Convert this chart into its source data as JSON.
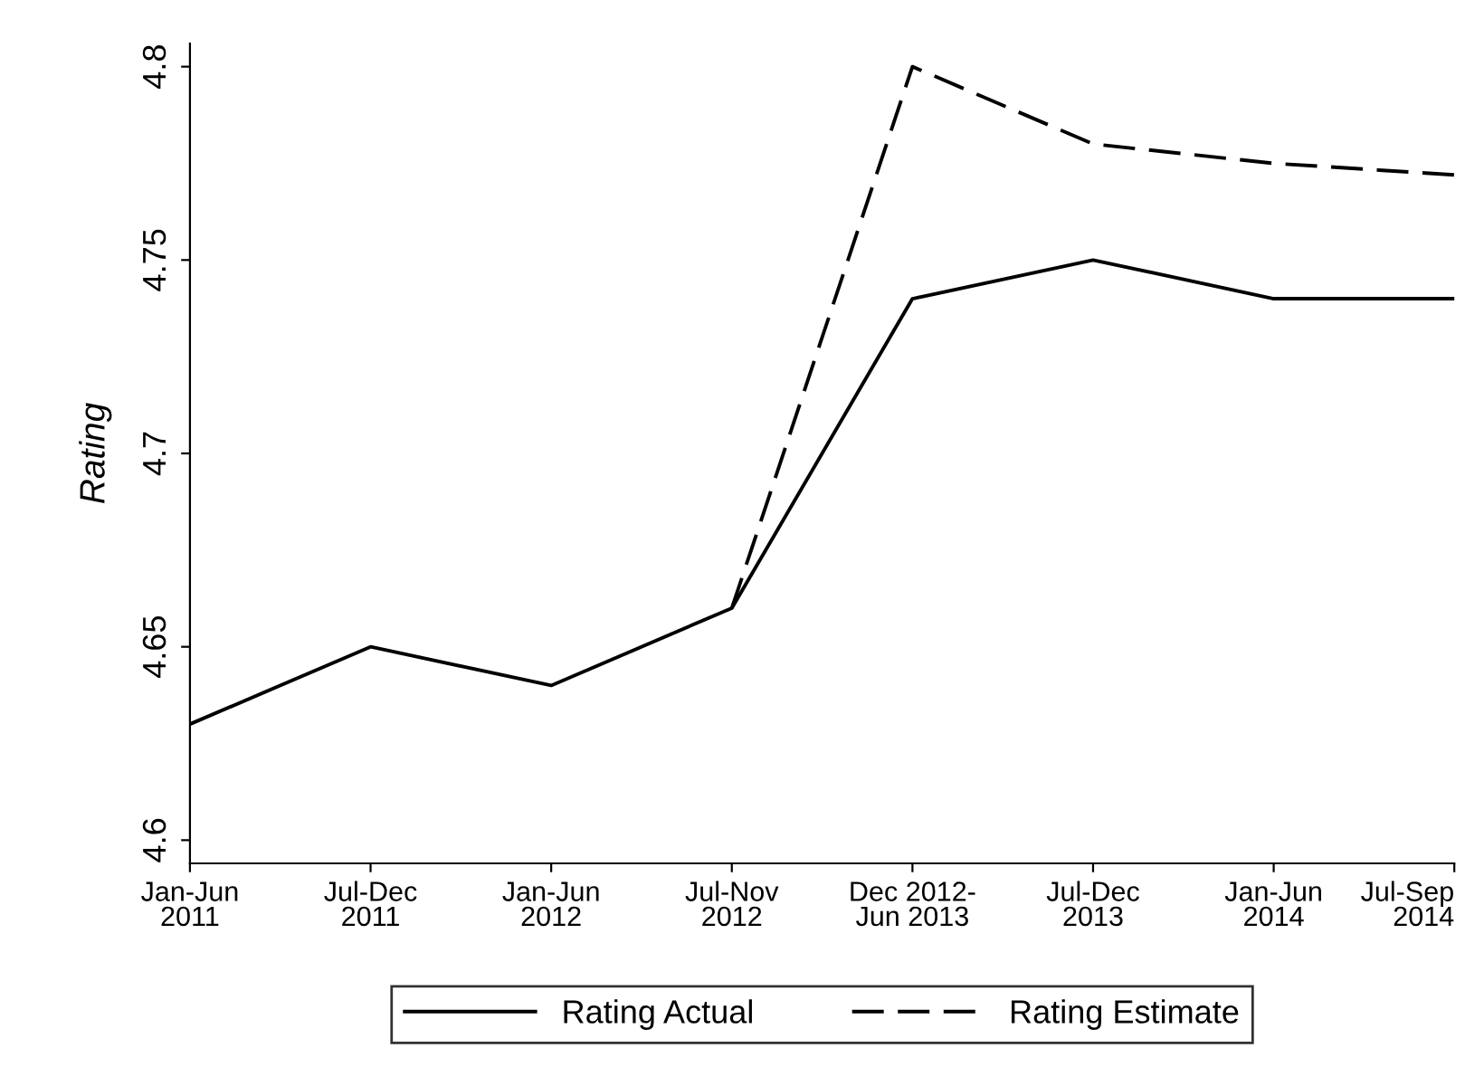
{
  "chart_data": {
    "type": "line",
    "ylabel": "Rating",
    "categories": [
      "Jan-Jun\n2011",
      "Jul-Dec\n2011",
      "Jan-Jun\n2012",
      "Jul-Nov\n2012",
      "Dec 2012-\nJun 2013",
      "Jul-Dec\n2013",
      "Jan-Jun\n2014",
      "Jul-Sep\n2014"
    ],
    "series": [
      {
        "name": "Rating Actual",
        "color": "#000000",
        "line_style": "solid",
        "values": [
          4.63,
          4.65,
          4.64,
          4.66,
          4.74,
          4.75,
          4.74,
          4.74
        ]
      },
      {
        "name": "Rating Estimate",
        "color": "#000000",
        "line_style": "dashed",
        "values": [
          null,
          null,
          null,
          4.66,
          4.8,
          4.78,
          4.775,
          4.772
        ]
      }
    ],
    "ylim": [
      4.594,
      4.806
    ],
    "yticks": [
      4.6,
      4.65,
      4.7,
      4.75,
      4.8
    ],
    "grid": false,
    "legend": "bottom",
    "marker": "none"
  }
}
